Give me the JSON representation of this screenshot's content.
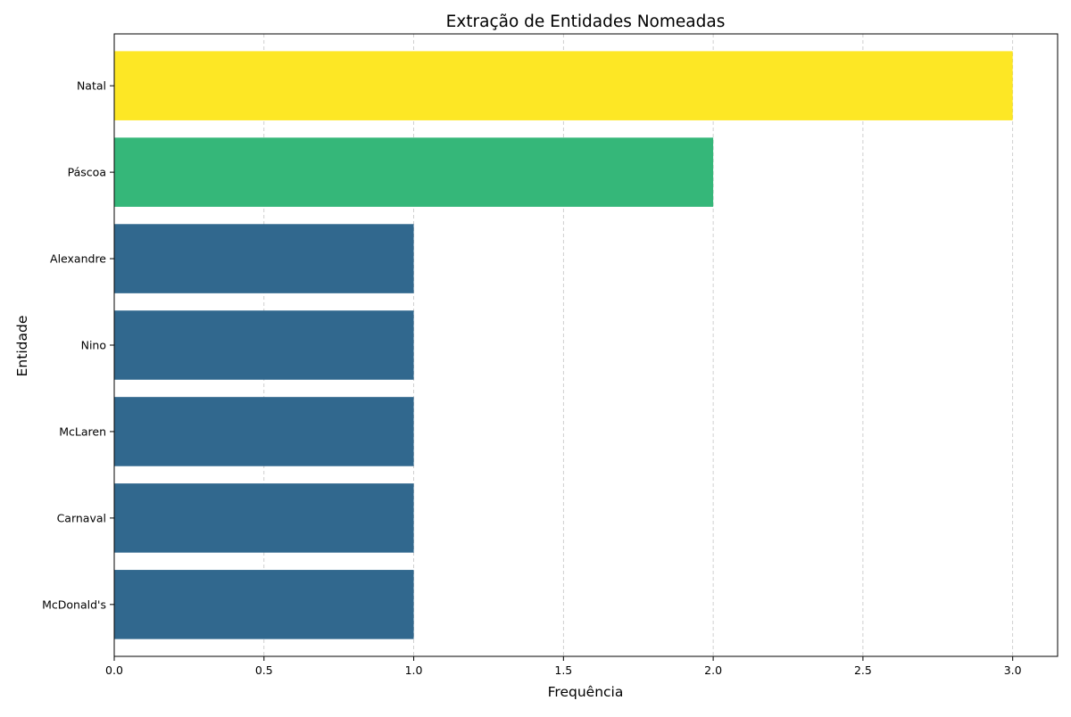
{
  "chart_data": {
    "type": "bar",
    "orientation": "horizontal",
    "title": "Extração de Entidades Nomeadas",
    "xlabel": "Frequência",
    "ylabel": "Entidade",
    "categories": [
      "Natal",
      "Páscoa",
      "Alexandre",
      "Nino",
      "McLaren",
      "Carnaval",
      "McDonald's"
    ],
    "values": [
      3,
      2,
      1,
      1,
      1,
      1,
      1
    ],
    "bar_colors": [
      "#fde725",
      "#35b779",
      "#31688e",
      "#31688e",
      "#31688e",
      "#31688e",
      "#31688e"
    ],
    "xlim": [
      0,
      3.15
    ],
    "x_ticks": [
      0.0,
      0.5,
      1.0,
      1.5,
      2.0,
      2.5,
      3.0
    ],
    "x_tick_labels": [
      "0.0",
      "0.5",
      "1.0",
      "1.5",
      "2.0",
      "2.5",
      "3.0"
    ],
    "grid": "x-axis dashed"
  }
}
